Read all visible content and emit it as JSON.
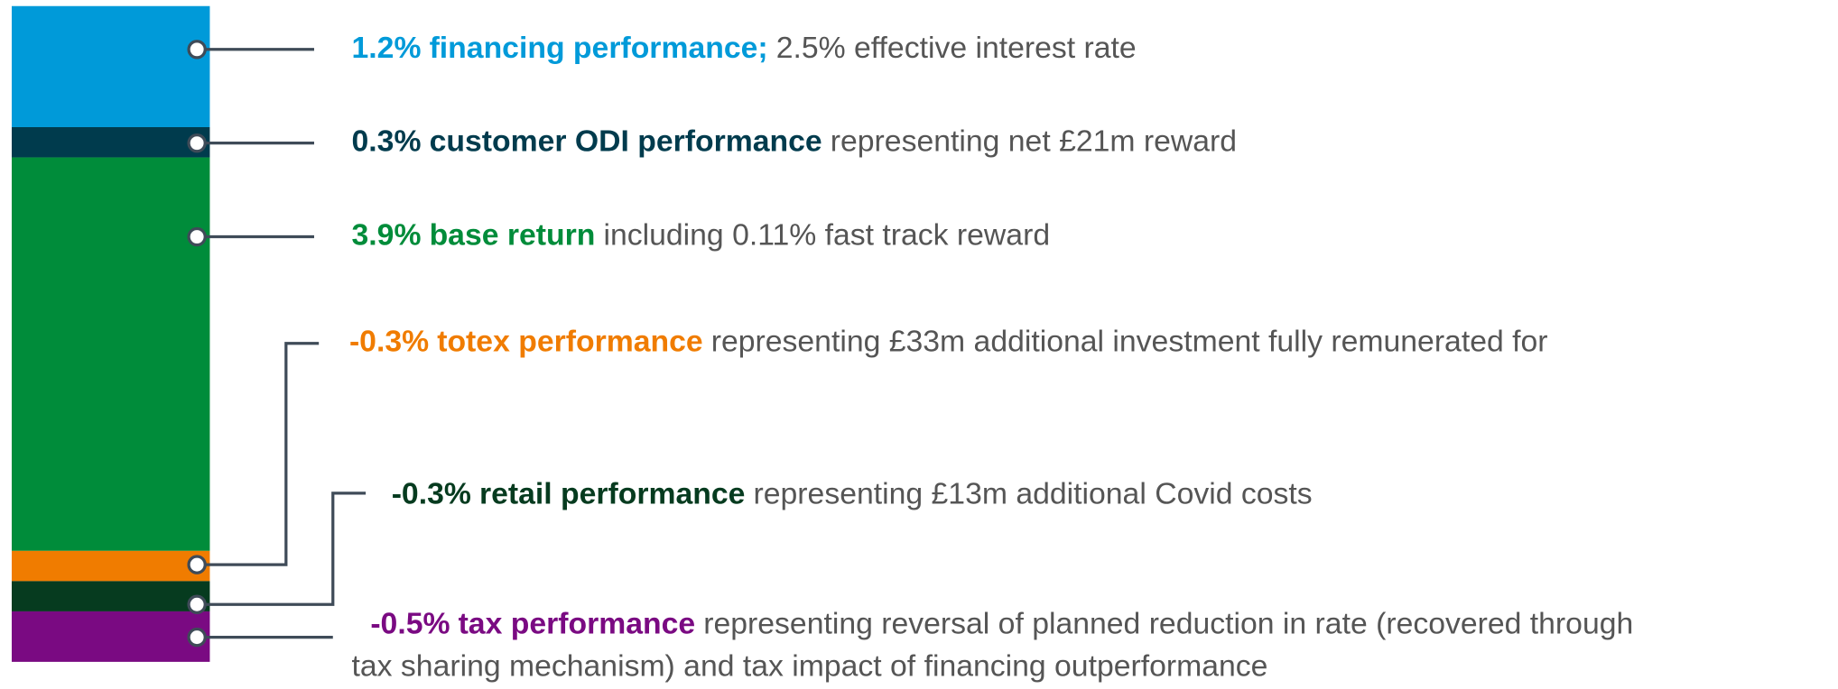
{
  "chart_data": {
    "type": "stacked-bar",
    "series": [
      {
        "name": "financing performance;",
        "value_label": "1.2%",
        "values": [
          1.2
        ],
        "color": "#009ad9",
        "description": [
          "2.5% effective interest rate"
        ]
      },
      {
        "name": "customer ODI performance",
        "value_label": "0.3%",
        "values": [
          0.3
        ],
        "color": "#003b4d",
        "description": [
          "representing net £21m reward"
        ]
      },
      {
        "name": "base return",
        "value_label": "3.9%",
        "values": [
          3.9
        ],
        "color": "#008c3a",
        "description": [
          "including 0.11% fast track reward"
        ]
      },
      {
        "name": "totex performance",
        "value_label": "-0.3%",
        "values": [
          -0.3
        ],
        "color": "#f07c00",
        "description": [
          "representing £33m additional investment fully remunerated for"
        ]
      },
      {
        "name": "retail performance",
        "value_label": "-0.3%",
        "values": [
          -0.3
        ],
        "color": "#063b1f",
        "description": [
          "representing £13m additional Covid costs"
        ]
      },
      {
        "name": "tax performance",
        "value_label": "-0.5%",
        "values": [
          -0.5
        ],
        "color": "#7a0a82",
        "description": [
          "representing reversal of planned reduction in rate (recovered through",
          "tax sharing mechanism) and tax impact of financing outperformance"
        ]
      }
    ]
  }
}
